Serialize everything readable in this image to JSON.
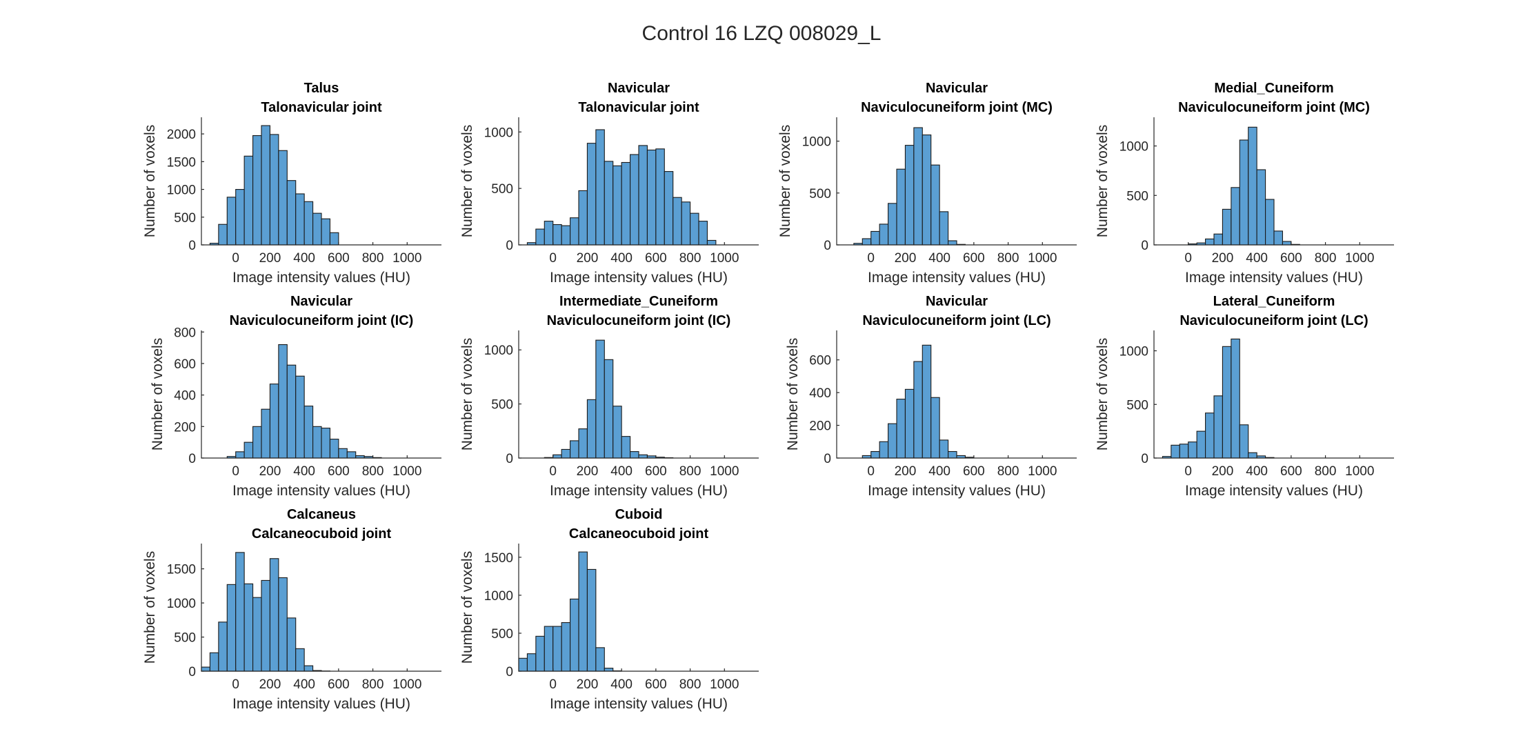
{
  "figure_title": "Control 16 LZQ 008029_L",
  "colors": {
    "bar_fill": "#5b9fd3",
    "bar_edge": "#1a1a1a",
    "axis": "#262626"
  },
  "chart_data": [
    {
      "type": "bar",
      "bone": "Talus",
      "joint": "Talonavicular joint",
      "xlabel": "Image intensity values (HU)",
      "ylabel": "Number of voxels",
      "xlim": [
        -200,
        1200
      ],
      "ylim": [
        0,
        2300
      ],
      "xticks": [
        0,
        200,
        400,
        600,
        800,
        1000
      ],
      "yticks": [
        0,
        500,
        1000,
        1500,
        2000
      ],
      "bin_start": -150,
      "bin_width": 50,
      "values": [
        30,
        370,
        860,
        1000,
        1600,
        1970,
        2150,
        1990,
        1700,
        1160,
        920,
        780,
        570,
        470,
        220
      ]
    },
    {
      "type": "bar",
      "bone": "Navicular",
      "joint": "Talonavicular joint",
      "xlabel": "Image intensity values (HU)",
      "ylabel": "Number of voxels",
      "xlim": [
        -200,
        1200
      ],
      "ylim": [
        0,
        1130
      ],
      "xticks": [
        0,
        200,
        400,
        600,
        800,
        1000
      ],
      "yticks": [
        0,
        500,
        1000
      ],
      "bin_start": -150,
      "bin_width": 50,
      "values": [
        20,
        140,
        210,
        180,
        170,
        240,
        480,
        900,
        1020,
        740,
        700,
        730,
        800,
        880,
        840,
        850,
        650,
        420,
        380,
        280,
        210,
        40
      ]
    },
    {
      "type": "bar",
      "bone": "Navicular",
      "joint": "Naviculocuneiform joint (MC)",
      "xlabel": "Image intensity values (HU)",
      "ylabel": "Number of voxels",
      "xlim": [
        -200,
        1200
      ],
      "ylim": [
        0,
        1230
      ],
      "xticks": [
        0,
        200,
        400,
        600,
        800,
        1000
      ],
      "yticks": [
        0,
        500,
        1000
      ],
      "bin_start": -100,
      "bin_width": 50,
      "values": [
        15,
        60,
        130,
        200,
        400,
        730,
        960,
        1130,
        1060,
        770,
        320,
        40,
        5
      ]
    },
    {
      "type": "bar",
      "bone": "Medial_Cuneiform",
      "joint": "Naviculocuneiform joint (MC)",
      "xlabel": "Image intensity values (HU)",
      "ylabel": "Number of voxels",
      "xlim": [
        -200,
        1200
      ],
      "ylim": [
        0,
        1290
      ],
      "xticks": [
        0,
        200,
        400,
        600,
        800,
        1000
      ],
      "yticks": [
        0,
        500,
        1000
      ],
      "bin_start": 0,
      "bin_width": 50,
      "values": [
        10,
        20,
        60,
        110,
        360,
        580,
        1060,
        1190,
        760,
        460,
        140,
        35,
        5
      ]
    },
    {
      "type": "bar",
      "bone": "Navicular",
      "joint": "Naviculocuneiform joint (IC)",
      "xlabel": "Image intensity values (HU)",
      "ylabel": "Number of voxels",
      "xlim": [
        -200,
        1200
      ],
      "ylim": [
        0,
        810
      ],
      "xticks": [
        0,
        200,
        400,
        600,
        800,
        1000
      ],
      "yticks": [
        0,
        200,
        400,
        600,
        800
      ],
      "bin_start": -50,
      "bin_width": 50,
      "values": [
        10,
        40,
        100,
        200,
        310,
        470,
        720,
        590,
        520,
        330,
        200,
        190,
        120,
        60,
        40,
        15,
        10,
        3
      ]
    },
    {
      "type": "bar",
      "bone": "Intermediate_Cuneiform",
      "joint": "Naviculocuneiform joint (IC)",
      "xlabel": "Image intensity values (HU)",
      "ylabel": "Number of voxels",
      "xlim": [
        -200,
        1200
      ],
      "ylim": [
        0,
        1180
      ],
      "xticks": [
        0,
        200,
        400,
        600,
        800,
        1000
      ],
      "yticks": [
        0,
        500,
        1000
      ],
      "bin_start": -50,
      "bin_width": 50,
      "values": [
        5,
        30,
        80,
        160,
        270,
        540,
        1090,
        910,
        480,
        200,
        60,
        30,
        20,
        8,
        3
      ]
    },
    {
      "type": "bar",
      "bone": "Navicular",
      "joint": "Naviculocuneiform joint (LC)",
      "xlabel": "Image intensity values (HU)",
      "ylabel": "Number of voxels",
      "xlim": [
        -200,
        1200
      ],
      "ylim": [
        0,
        780
      ],
      "xticks": [
        0,
        200,
        400,
        600,
        800,
        1000
      ],
      "yticks": [
        0,
        200,
        400,
        600
      ],
      "bin_start": -50,
      "bin_width": 50,
      "values": [
        15,
        40,
        100,
        210,
        360,
        420,
        590,
        690,
        370,
        110,
        40,
        15,
        5
      ]
    },
    {
      "type": "bar",
      "bone": "Lateral_Cuneiform",
      "joint": "Naviculocuneiform joint (LC)",
      "xlabel": "Image intensity values (HU)",
      "ylabel": "Number of voxels",
      "xlim": [
        -200,
        1200
      ],
      "ylim": [
        0,
        1190
      ],
      "xticks": [
        0,
        200,
        400,
        600,
        800,
        1000
      ],
      "yticks": [
        0,
        500,
        1000
      ],
      "bin_start": -150,
      "bin_width": 50,
      "values": [
        15,
        120,
        130,
        150,
        250,
        420,
        580,
        1040,
        1110,
        310,
        50,
        20,
        5
      ]
    },
    {
      "type": "bar",
      "bone": "Calcaneus",
      "joint": "Calcaneocuboid joint",
      "xlabel": "Image intensity values (HU)",
      "ylabel": "Number of voxels",
      "xlim": [
        -200,
        1200
      ],
      "ylim": [
        0,
        1870
      ],
      "xticks": [
        0,
        200,
        400,
        600,
        800,
        1000
      ],
      "yticks": [
        0,
        500,
        1000,
        1500
      ],
      "bin_start": -200,
      "bin_width": 50,
      "values": [
        60,
        270,
        720,
        1270,
        1740,
        1280,
        1080,
        1330,
        1650,
        1370,
        780,
        330,
        80,
        10,
        3
      ]
    },
    {
      "type": "bar",
      "bone": "Cuboid",
      "joint": "Calcaneocuboid joint",
      "xlabel": "Image intensity values (HU)",
      "ylabel": "Number of voxels",
      "xlim": [
        -200,
        1200
      ],
      "ylim": [
        0,
        1680
      ],
      "xticks": [
        0,
        200,
        400,
        600,
        800,
        1000
      ],
      "yticks": [
        0,
        500,
        1000,
        1500
      ],
      "bin_start": -200,
      "bin_width": 50,
      "values": [
        170,
        230,
        460,
        590,
        590,
        640,
        950,
        1570,
        1340,
        310,
        40,
        5
      ]
    }
  ]
}
